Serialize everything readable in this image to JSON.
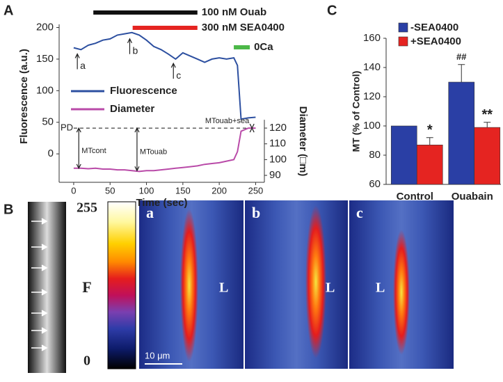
{
  "chart_data": [
    {
      "type": "line",
      "panel": "A",
      "x": [
        0,
        10,
        20,
        30,
        40,
        50,
        60,
        70,
        80,
        90,
        100,
        110,
        120,
        130,
        140,
        150,
        160,
        170,
        180,
        190,
        200,
        210,
        220,
        225,
        230,
        240,
        250
      ],
      "series": [
        {
          "name": "Fluorescence",
          "color": "#2c4fa0",
          "values": [
            168,
            165,
            172,
            175,
            180,
            182,
            188,
            190,
            192,
            188,
            180,
            170,
            165,
            158,
            150,
            160,
            155,
            150,
            145,
            150,
            152,
            150,
            152,
            140,
            55,
            57,
            58
          ]
        },
        {
          "name": "Diameter",
          "color": "#b94aa8",
          "axis": "y2",
          "values": [
            94.5,
            94.5,
            94.2,
            94.5,
            94,
            94,
            93.5,
            93.5,
            93,
            92.5,
            93,
            93,
            93.5,
            94,
            94.5,
            95,
            95.5,
            96,
            97,
            97.5,
            98,
            99,
            100,
            105,
            118,
            120,
            120
          ]
        }
      ],
      "xlabel": "Time (sec)",
      "ylabel": "Fluorescence (a.u.)",
      "y2label": "Diameter (□m)",
      "xlim": [
        -20,
        262
      ],
      "xticks": [
        0,
        50,
        100,
        150,
        200,
        250
      ],
      "ylim": [
        -45,
        205
      ],
      "yticks": [
        0,
        50,
        100,
        150,
        200
      ],
      "y2lim": [
        85.6,
        185.8
      ],
      "y2ticks": [
        90,
        100,
        110,
        120
      ],
      "treatments": [
        {
          "text": "100 nM Ouab",
          "start": 27,
          "end": 170,
          "color": "#111111"
        },
        {
          "text": "300 nM SEA0400",
          "start": 81,
          "end": 170,
          "color": "#e52421"
        },
        {
          "text": "0Ca",
          "start": 220,
          "end": 242,
          "color": "#4cb848"
        }
      ],
      "points": [
        {
          "label": "a",
          "x": 5,
          "y": 167
        },
        {
          "label": "b",
          "x": 77,
          "y": 191
        },
        {
          "label": "c",
          "x": 137,
          "y": 152
        }
      ],
      "reference": {
        "label": "PD",
        "y2": 120
      },
      "measures": [
        {
          "label": "MTcont",
          "x": 7,
          "from": 94.5
        },
        {
          "label": "MTouab",
          "x": 87,
          "from": 93
        },
        {
          "label": "MTouab+sea",
          "x": 245,
          "from": 120
        }
      ]
    },
    {
      "type": "bar",
      "panel": "C",
      "categories": [
        "Control",
        "Ouabain"
      ],
      "series": [
        {
          "name": "-SEA0400",
          "color": "#2a3fa5",
          "values": [
            100,
            130
          ],
          "errors": [
            0,
            12
          ],
          "markers": [
            null,
            "##"
          ]
        },
        {
          "name": "+SEA0400",
          "color": "#e52421",
          "values": [
            87,
            99
          ],
          "errors": [
            5,
            3.5
          ],
          "markers": [
            "*",
            "**"
          ]
        }
      ],
      "ylabel": "MT (% of Control)",
      "ylim": [
        60,
        160
      ],
      "yticks": [
        60,
        80,
        100,
        120,
        140,
        160
      ]
    }
  ],
  "panel_b": {
    "panel": "B",
    "scale_top": "255",
    "scale_mid": "F",
    "scale_bottom": "0",
    "images": [
      "a",
      "b",
      "c"
    ],
    "lumen": "L",
    "scalebar": "10 μm"
  }
}
